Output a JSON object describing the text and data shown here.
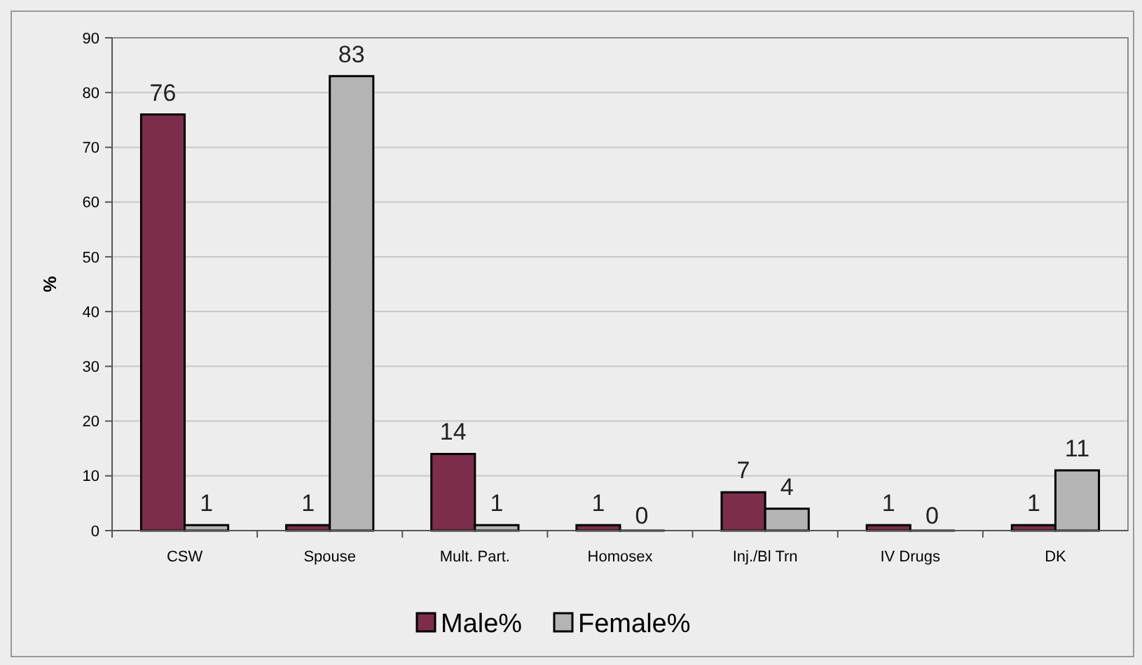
{
  "chart_data": {
    "type": "bar",
    "ylabel": "%",
    "categories": [
      "CSW",
      "Spouse",
      "Mult. Part.",
      "Homosex",
      "Inj./Bl Trn",
      "IV Drugs",
      "DK"
    ],
    "series": [
      {
        "name": "Male%",
        "color": "#7b2d4b",
        "values": [
          76,
          1,
          14,
          1,
          7,
          1,
          1
        ]
      },
      {
        "name": "Female%",
        "color": "#b4b4b4",
        "values": [
          1,
          83,
          1,
          0,
          4,
          0,
          11
        ]
      }
    ],
    "ylim": [
      0,
      90
    ],
    "yticks": [
      0,
      10,
      20,
      30,
      40,
      50,
      60,
      70,
      80,
      90
    ],
    "grid": "y",
    "legend": "bottom",
    "data_labels": true
  }
}
